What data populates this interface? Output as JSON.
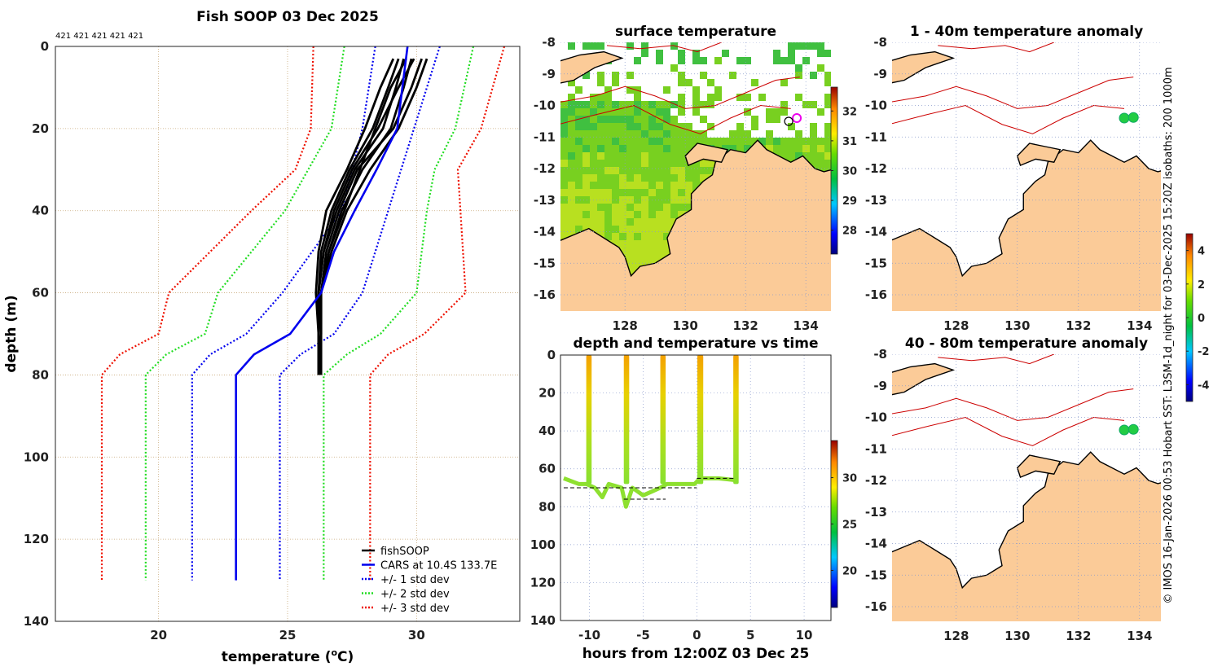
{
  "chart_data": [
    {
      "type": "line",
      "title": "Fish SOOP 03 Dec 2025",
      "counts_label": "421 421 421 421 421",
      "xlabel": "temperature (°C)",
      "xlabel_main": "temperature (",
      "xlabel_sup": "o",
      "xlabel_unit": "C)",
      "ylabel": "depth (m)",
      "xlim": [
        16,
        34
      ],
      "ylim": [
        140,
        0
      ],
      "xticks": [
        20,
        25,
        30
      ],
      "yticks": [
        0,
        20,
        40,
        60,
        80,
        100,
        120,
        140
      ],
      "grid": true,
      "legend_position": "bottom-right",
      "legend": [
        "fishSOOP",
        "CARS at 10.4S 133.7E",
        "+/- 1 std dev",
        "+/- 2 std dev",
        "+/- 3 std dev"
      ],
      "colors": {
        "fish": "#000000",
        "cars": "#0000ee",
        "std1": "#0000ee",
        "std2": "#22dd22",
        "std3": "#ee1100"
      },
      "depths_std": [
        0,
        20,
        30,
        40,
        60,
        70,
        75,
        80,
        130
      ],
      "cars": {
        "depth": [
          0,
          20,
          30,
          40,
          50,
          60,
          70,
          75,
          80,
          130
        ],
        "temp": [
          29.65,
          29.25,
          28.45,
          27.6,
          26.8,
          26.3,
          25.1,
          23.7,
          23.0,
          23.0
        ]
      },
      "std1_low": [
        28.4,
        27.9,
        27.5,
        27.1,
        24.8,
        23.4,
        22.0,
        21.3,
        21.3
      ],
      "std1_high": [
        30.9,
        29.9,
        29.4,
        28.9,
        27.9,
        26.8,
        25.5,
        24.7,
        24.7
      ],
      "std2_low": [
        27.2,
        26.7,
        25.8,
        24.9,
        22.3,
        21.8,
        20.3,
        19.5,
        19.5
      ],
      "std2_high": [
        32.2,
        31.5,
        30.7,
        30.4,
        30.0,
        28.6,
        27.3,
        26.4,
        26.4
      ],
      "std3_low": [
        26.0,
        25.9,
        25.3,
        23.6,
        20.4,
        20.0,
        18.5,
        17.8,
        17.8
      ],
      "std3_high": [
        33.4,
        32.5,
        31.6,
        31.7,
        31.9,
        30.3,
        28.9,
        28.2,
        28.2
      ],
      "fish_depth": [
        3,
        10,
        20,
        30,
        40,
        50,
        60,
        70,
        80
      ],
      "fish_profiles": [
        [
          29.5,
          29.2,
          28.7,
          27.6,
          26.9,
          26.4,
          26.2,
          26.2,
          26.3
        ],
        [
          29.8,
          29.5,
          29.0,
          27.9,
          27.1,
          26.6,
          26.3,
          26.2,
          26.2
        ],
        [
          29.3,
          28.9,
          28.3,
          27.4,
          26.7,
          26.3,
          26.2,
          26.2,
          26.2
        ],
        [
          30.4,
          30.0,
          29.3,
          28.2,
          27.3,
          26.7,
          26.3,
          26.3,
          26.3
        ],
        [
          29.1,
          28.6,
          28.0,
          27.3,
          26.5,
          26.2,
          26.1,
          26.2,
          26.2
        ],
        [
          29.9,
          29.3,
          28.5,
          27.5,
          26.8,
          26.4,
          26.2,
          26.2,
          26.2
        ],
        [
          30.2,
          29.8,
          29.1,
          27.7,
          27.0,
          26.5,
          26.3,
          26.2,
          26.3
        ],
        [
          29.6,
          29.0,
          28.4,
          27.8,
          27.2,
          26.6,
          26.3,
          26.3,
          26.2
        ]
      ]
    },
    {
      "type": "heatmap",
      "title": "surface temperature",
      "xticks": [
        128,
        130,
        132,
        134
      ],
      "yticks": [
        -8,
        -9,
        -10,
        -11,
        -12,
        -13,
        -14,
        -15,
        -16
      ],
      "xlim": [
        125.86,
        134.84
      ],
      "ylim": [
        -16.5,
        -8
      ],
      "colorbar_ticks": [
        28,
        29,
        30,
        31,
        32
      ],
      "colorbar_range": [
        27.2,
        32.8
      ],
      "vessel_position": [
        133.7,
        -10.4
      ]
    },
    {
      "type": "scatter",
      "title": "depth and temperature vs time",
      "xlabel": "hours from 12:00Z 03 Dec 25",
      "xticks": [
        -10,
        -5,
        0,
        5,
        10
      ],
      "yticks": [
        0,
        20,
        40,
        60,
        80,
        100,
        120,
        140
      ],
      "xlim": [
        -12.7,
        12.5
      ],
      "ylim": [
        140,
        0
      ],
      "colorbar_ticks": [
        20,
        25,
        30
      ],
      "colorbar_range": [
        16,
        34
      ],
      "casts": [
        [
          -10.3,
          -9.8
        ],
        [
          -6.8,
          -6.3
        ],
        [
          -3.4,
          -2.9
        ],
        [
          0.05,
          0.6
        ],
        [
          3.4,
          3.9
        ]
      ],
      "bottom_depth_m": [
        [
          -12.4,
          65
        ],
        [
          -11.0,
          68
        ],
        [
          -10.3,
          68
        ],
        [
          -9.5,
          70
        ],
        [
          -8.8,
          75
        ],
        [
          -8.2,
          68
        ],
        [
          -7.0,
          70
        ],
        [
          -6.6,
          80
        ],
        [
          -6.0,
          70
        ],
        [
          -5.0,
          74
        ],
        [
          -4.2,
          72
        ],
        [
          -3.4,
          70
        ],
        [
          -2.8,
          68
        ],
        [
          -1.5,
          68
        ],
        [
          -0.2,
          68
        ],
        [
          0.3,
          65
        ],
        [
          2.0,
          65
        ],
        [
          3.6,
          66
        ]
      ],
      "dashed_bottom": [
        [
          -12.4,
          0,
          70
        ],
        [
          -6.8,
          -2.9,
          76
        ],
        [
          0,
          3.6,
          65
        ]
      ]
    },
    {
      "type": "heatmap",
      "title": "1 - 40m temperature anomaly",
      "xticks": [
        128,
        130,
        132,
        134
      ],
      "yticks": [
        -8,
        -9,
        -10,
        -11,
        -12,
        -13,
        -14,
        -15,
        -16
      ],
      "points": [
        [
          133.5,
          -10.4
        ],
        [
          133.8,
          -10.38
        ]
      ]
    },
    {
      "type": "heatmap",
      "title": "40 - 80m temperature anomaly",
      "xticks": [
        128,
        130,
        132,
        134
      ],
      "yticks": [
        -8,
        -9,
        -10,
        -11,
        -12,
        -13,
        -14,
        -15,
        -16
      ],
      "points": [
        [
          133.5,
          -10.4
        ],
        [
          133.8,
          -10.38
        ]
      ],
      "colorbar_ticks": [
        -4,
        -2,
        0,
        2,
        4
      ],
      "colorbar_range": [
        -5,
        5
      ]
    }
  ],
  "credit": "© IMOS 16-Jan-2026 00:53 Hobart SST: L3SM-1d_night for 03-Dec-2025 15:20Z isobaths: 200  1000m",
  "colors": {
    "land": "#fbcb98",
    "coast": "#000000",
    "isobath": "#cc0000"
  }
}
